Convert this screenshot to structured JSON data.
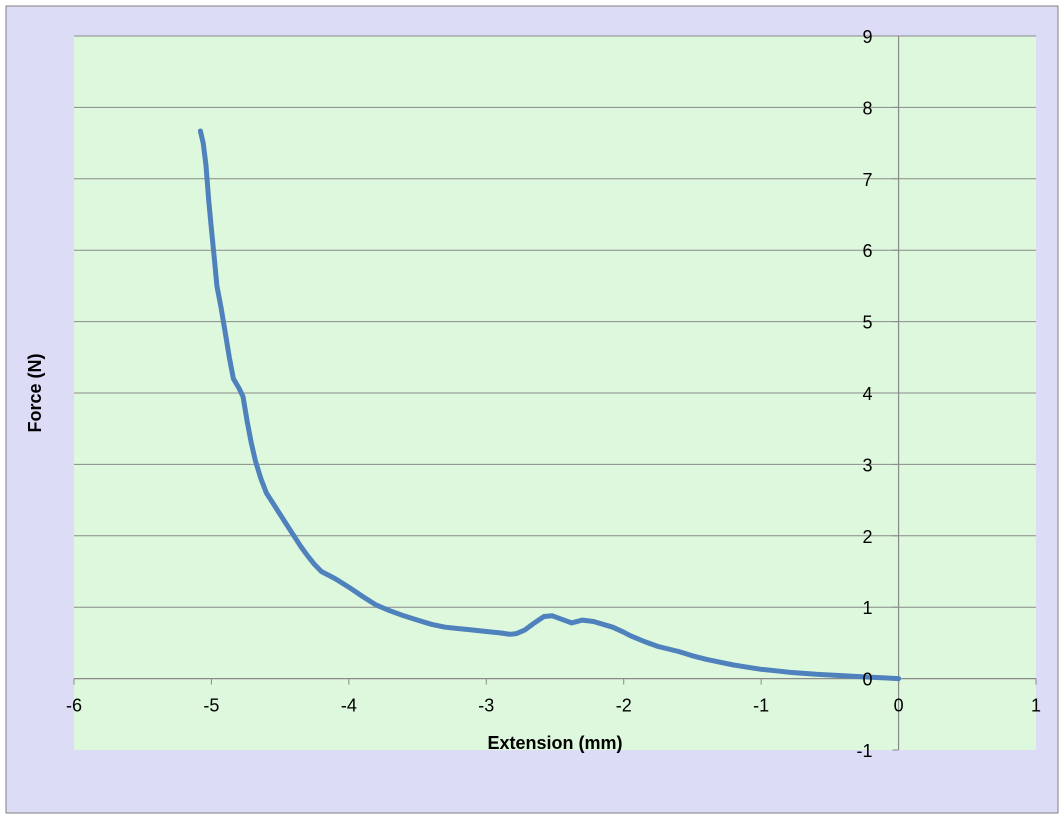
{
  "colors": {
    "chart_area_bg": "#DCDCF7",
    "plot_area_bg": "#DDF8DD",
    "gridline": "#8A8A8A",
    "axis_line": "#8A8A8A",
    "series": "#4F81BD",
    "text": "#000000"
  },
  "chart_data": {
    "type": "line",
    "title": "",
    "xlabel": "Extension (mm)",
    "ylabel": "Force (N)",
    "xlim": [
      -6,
      1
    ],
    "ylim": [
      -1,
      9
    ],
    "x_ticks": [
      -6,
      -5,
      -4,
      -3,
      -2,
      -1,
      0,
      1
    ],
    "y_ticks": [
      -1,
      0,
      1,
      2,
      3,
      4,
      5,
      6,
      7,
      8,
      9
    ],
    "x_tick_labels": [
      "-6",
      "-5",
      "-4",
      "-3",
      "-2",
      "-1",
      "0",
      "1"
    ],
    "y_tick_labels": [
      "-1",
      "0",
      "1",
      "2",
      "3",
      "4",
      "5",
      "6",
      "7",
      "8",
      "9"
    ],
    "grid": "horizontal",
    "legend": "none",
    "series": [
      {
        "x": [
          -5.08,
          -5.06,
          -5.04,
          -5.02,
          -5.0,
          -4.98,
          -4.96,
          -4.93,
          -4.9,
          -4.87,
          -4.84,
          -4.8,
          -4.77,
          -4.74,
          -4.71,
          -4.68,
          -4.64,
          -4.6,
          -4.55,
          -4.5,
          -4.45,
          -4.4,
          -4.35,
          -4.3,
          -4.25,
          -4.2,
          -4.1,
          -4.0,
          -3.9,
          -3.8,
          -3.7,
          -3.6,
          -3.5,
          -3.4,
          -3.3,
          -3.2,
          -3.1,
          -3.0,
          -2.9,
          -2.83,
          -2.78,
          -2.72,
          -2.65,
          -2.58,
          -2.52,
          -2.45,
          -2.38,
          -2.3,
          -2.22,
          -2.15,
          -2.08,
          -2.0,
          -1.95,
          -1.85,
          -1.75,
          -1.6,
          -1.5,
          -1.4,
          -1.3,
          -1.2,
          -1.1,
          -1.0,
          -0.9,
          -0.8,
          -0.6,
          -0.4,
          -0.2,
          0.0
        ],
        "y": [
          7.67,
          7.5,
          7.2,
          6.7,
          6.3,
          5.9,
          5.5,
          5.2,
          4.85,
          4.5,
          4.2,
          4.07,
          3.95,
          3.6,
          3.3,
          3.05,
          2.8,
          2.6,
          2.45,
          2.3,
          2.15,
          2.0,
          1.85,
          1.72,
          1.6,
          1.5,
          1.4,
          1.28,
          1.15,
          1.03,
          0.95,
          0.88,
          0.82,
          0.76,
          0.72,
          0.7,
          0.68,
          0.66,
          0.64,
          0.62,
          0.63,
          0.68,
          0.78,
          0.87,
          0.88,
          0.83,
          0.78,
          0.82,
          0.8,
          0.76,
          0.72,
          0.65,
          0.6,
          0.52,
          0.45,
          0.38,
          0.32,
          0.27,
          0.23,
          0.19,
          0.16,
          0.13,
          0.11,
          0.09,
          0.06,
          0.04,
          0.02,
          0.0
        ]
      }
    ]
  }
}
